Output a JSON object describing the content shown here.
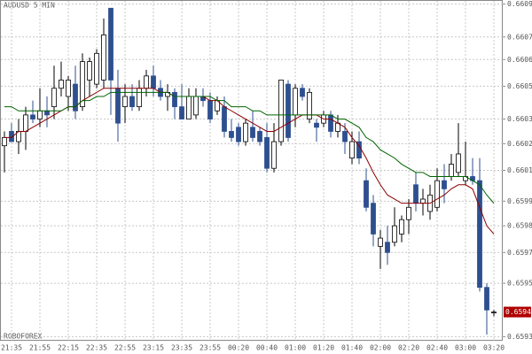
{
  "chart_data": {
    "type": "candlestick",
    "title": "AUDUSD 5 MIN",
    "watermark": "ROBOFOREX",
    "categories": [
      null,
      "21:35",
      null,
      null,
      null,
      "21:55",
      null,
      null,
      null,
      "22:15",
      null,
      null,
      null,
      "22:35",
      null,
      null,
      null,
      "22:55",
      null,
      null,
      null,
      "23:15",
      null,
      null,
      null,
      "23:35",
      null,
      null,
      null,
      "23:55",
      null,
      null,
      null,
      "00:20",
      null,
      null,
      null,
      "00:40",
      null,
      null,
      null,
      "01:00",
      null,
      null,
      null,
      "01:20",
      null,
      null,
      null,
      "01:40",
      null,
      null,
      null,
      "02:00",
      null,
      null,
      null,
      "02:20",
      null,
      null,
      null,
      "02:40",
      null,
      null,
      null,
      "03:00",
      null,
      null,
      null,
      "03:20"
    ],
    "ohlc": [
      [
        0.66021,
        0.66028,
        0.66008,
        0.66025
      ],
      [
        0.66028,
        0.66032,
        0.66023,
        0.66023
      ],
      [
        0.66023,
        0.66034,
        0.66017,
        0.66028
      ],
      [
        0.66028,
        0.6604,
        0.66019,
        0.66036
      ],
      [
        0.66036,
        0.66043,
        0.66032,
        0.66034
      ],
      [
        0.66034,
        0.66049,
        0.6603,
        0.66038
      ],
      [
        0.66038,
        0.66045,
        0.6603,
        0.66036
      ],
      [
        0.6604,
        0.6606,
        0.66034,
        0.66049
      ],
      [
        0.66049,
        0.66062,
        0.66045,
        0.66053
      ],
      [
        0.66045,
        0.66055,
        0.66038,
        0.66053
      ],
      [
        0.66051,
        0.6606,
        0.66034,
        0.66038
      ],
      [
        0.6604,
        0.66066,
        0.66038,
        0.66062
      ],
      [
        0.66053,
        0.66064,
        0.66045,
        0.66062
      ],
      [
        0.66051,
        0.66068,
        0.66049,
        0.66066
      ],
      [
        0.66053,
        0.66083,
        0.66049,
        0.66075
      ],
      [
        0.66088,
        0.66088,
        0.66036,
        0.66053
      ],
      [
        0.66049,
        0.66058,
        0.66023,
        0.66032
      ],
      [
        0.6604,
        0.66051,
        0.66032,
        0.66045
      ],
      [
        0.66045,
        0.66051,
        0.66038,
        0.6604
      ],
      [
        0.6604,
        0.66053,
        0.66038,
        0.66049
      ],
      [
        0.66049,
        0.66058,
        0.66045,
        0.66055
      ],
      [
        0.66055,
        0.6606,
        0.66045,
        0.66049
      ],
      [
        0.66049,
        0.66053,
        0.66043,
        0.66045
      ],
      [
        0.66045,
        0.66051,
        0.66038,
        0.66047
      ],
      [
        0.66047,
        0.66049,
        0.66034,
        0.6604
      ],
      [
        0.6604,
        0.66051,
        0.66034,
        0.66034
      ],
      [
        0.66034,
        0.66049,
        0.66034,
        0.66045
      ],
      [
        0.66036,
        0.66049,
        0.66034,
        0.66045
      ],
      [
        0.66045,
        0.66049,
        0.6604,
        0.66043
      ],
      [
        0.66043,
        0.66047,
        0.66032,
        0.66034
      ],
      [
        0.66038,
        0.66045,
        0.66036,
        0.66043
      ],
      [
        0.6604,
        0.66045,
        0.66025,
        0.66028
      ],
      [
        0.66028,
        0.66034,
        0.66023,
        0.66025
      ],
      [
        0.6603,
        0.66032,
        0.66021,
        0.66023
      ],
      [
        0.66023,
        0.66034,
        0.66021,
        0.66032
      ],
      [
        0.6603,
        0.66038,
        0.66023,
        0.66025
      ],
      [
        0.66028,
        0.6603,
        0.66021,
        0.66023
      ],
      [
        0.66025,
        0.66032,
        0.66008,
        0.6601
      ],
      [
        0.6601,
        0.66032,
        0.66008,
        0.66023
      ],
      [
        0.66023,
        0.66053,
        0.66021,
        0.66053
      ],
      [
        0.66051,
        0.66053,
        0.66023,
        0.66025
      ],
      [
        0.66036,
        0.66051,
        0.6603,
        0.66049
      ],
      [
        0.66049,
        0.66051,
        0.66043,
        0.66045
      ],
      [
        0.66034,
        0.66049,
        0.66032,
        0.66047
      ],
      [
        0.66032,
        0.66034,
        0.66023,
        0.6603
      ],
      [
        0.66032,
        0.66038,
        0.6603,
        0.66036
      ],
      [
        0.66036,
        0.66038,
        0.66025,
        0.66028
      ],
      [
        0.66028,
        0.66036,
        0.66025,
        0.66032
      ],
      [
        0.66028,
        0.66032,
        0.66017,
        0.66023
      ],
      [
        0.66015,
        0.66028,
        0.66012,
        0.66023
      ],
      [
        0.66023,
        0.66028,
        0.66012,
        0.66015
      ],
      [
        0.66004,
        0.6601,
        0.65989,
        0.65991
      ],
      [
        0.65993,
        0.65997,
        0.65972,
        0.65978
      ],
      [
        0.65972,
        0.6598,
        0.65961,
        0.65976
      ],
      [
        0.65974,
        0.65982,
        0.65963,
        0.65969
      ],
      [
        0.65974,
        0.65991,
        0.65972,
        0.65982
      ],
      [
        0.65978,
        0.65987,
        0.65974,
        0.65985
      ],
      [
        0.65985,
        0.65995,
        0.65978,
        0.65991
      ],
      [
        0.66002,
        0.66008,
        0.65989,
        0.65993
      ],
      [
        0.65993,
        0.66,
        0.65987,
        0.65995
      ],
      [
        0.65989,
        0.66002,
        0.65985,
        0.65997
      ],
      [
        0.65991,
        0.6601,
        0.65989,
        0.66004
      ],
      [
        0.66004,
        0.66012,
        0.65993,
        0.66
      ],
      [
        0.66006,
        0.66017,
        0.66004,
        0.66012
      ],
      [
        0.66008,
        0.66032,
        0.66006,
        0.66017
      ],
      [
        0.66004,
        0.66023,
        0.66002,
        0.66006
      ],
      [
        0.66006,
        0.66015,
        0.66002,
        0.66004
      ],
      [
        0.66004,
        0.66015,
        0.6595,
        0.65952
      ],
      [
        0.65952,
        0.65954,
        0.65929,
        0.65941
      ],
      [
        0.6594,
        0.65941,
        0.65938,
        0.6594
      ]
    ],
    "up_color": "#ffffff",
    "down_color": "#2e4f8f",
    "overlays": [
      {
        "color": "#8b0000",
        "values": [
          0.66025,
          0.66025,
          0.66028,
          0.66028,
          0.6603,
          0.66032,
          0.66034,
          0.66036,
          0.66038,
          0.6604,
          0.6604,
          0.66043,
          0.66045,
          0.66047,
          0.66049,
          0.66049,
          0.66049,
          0.66049,
          0.66049,
          0.66049,
          0.66049,
          0.66049,
          0.66047,
          0.66047,
          0.66045,
          0.66045,
          0.66045,
          0.66045,
          0.66045,
          0.66043,
          0.66043,
          0.6604,
          0.66038,
          0.66036,
          0.66034,
          0.66032,
          0.6603,
          0.66028,
          0.66028,
          0.6603,
          0.66032,
          0.66034,
          0.66036,
          0.66036,
          0.66036,
          0.66034,
          0.66034,
          0.66032,
          0.6603,
          0.66025,
          0.66021,
          0.66015,
          0.66008,
          0.66002,
          0.65997,
          0.65995,
          0.65993,
          0.65993,
          0.65993,
          0.65993,
          0.65993,
          0.65995,
          0.65997,
          0.66,
          0.66002,
          0.66002,
          0.66,
          0.65991,
          0.65982,
          0.65978
        ]
      },
      {
        "color": "#006400",
        "values": [
          0.6604,
          0.6604,
          0.66038,
          0.66038,
          0.66038,
          0.66038,
          0.66038,
          0.66038,
          0.66038,
          0.6604,
          0.6604,
          0.66043,
          0.66043,
          0.66045,
          0.66045,
          0.66047,
          0.66047,
          0.66047,
          0.66047,
          0.66047,
          0.66047,
          0.66047,
          0.66047,
          0.66047,
          0.66045,
          0.66045,
          0.66045,
          0.66045,
          0.66045,
          0.66045,
          0.66043,
          0.66043,
          0.6604,
          0.6604,
          0.6604,
          0.66038,
          0.66038,
          0.66036,
          0.66036,
          0.66036,
          0.66036,
          0.66036,
          0.66036,
          0.66036,
          0.66036,
          0.66036,
          0.66036,
          0.66034,
          0.66034,
          0.66032,
          0.6603,
          0.66025,
          0.66023,
          0.66019,
          0.66017,
          0.66015,
          0.66012,
          0.6601,
          0.66008,
          0.66008,
          0.66006,
          0.66006,
          0.66006,
          0.66006,
          0.66006,
          0.66006,
          0.66004,
          0.66002,
          0.65997,
          0.65993
        ]
      }
    ],
    "current_price": 0.6594,
    "current_price_color": "#b00000",
    "ylim": [
      0.65923,
      0.66092
    ],
    "yticks": [
      {
        "value": 0.6609,
        "label": "0.6609"
      },
      {
        "value": 0.66074,
        "label": "0.6607"
      },
      {
        "value": 0.66063,
        "label": "0.6606"
      },
      {
        "value": 0.6605,
        "label": "0.6605"
      },
      {
        "value": 0.66034,
        "label": "0.6603"
      },
      {
        "value": 0.66022,
        "label": "0.6602"
      },
      {
        "value": 0.66009,
        "label": "0.6601"
      },
      {
        "value": 0.65994,
        "label": "0.6599"
      },
      {
        "value": 0.65982,
        "label": "0.6598"
      },
      {
        "value": 0.65969,
        "label": "0.6597"
      },
      {
        "value": 0.65954,
        "label": "0.6595"
      },
      {
        "value": 0.65928,
        "label": "0.6593"
      }
    ],
    "grid": true
  }
}
